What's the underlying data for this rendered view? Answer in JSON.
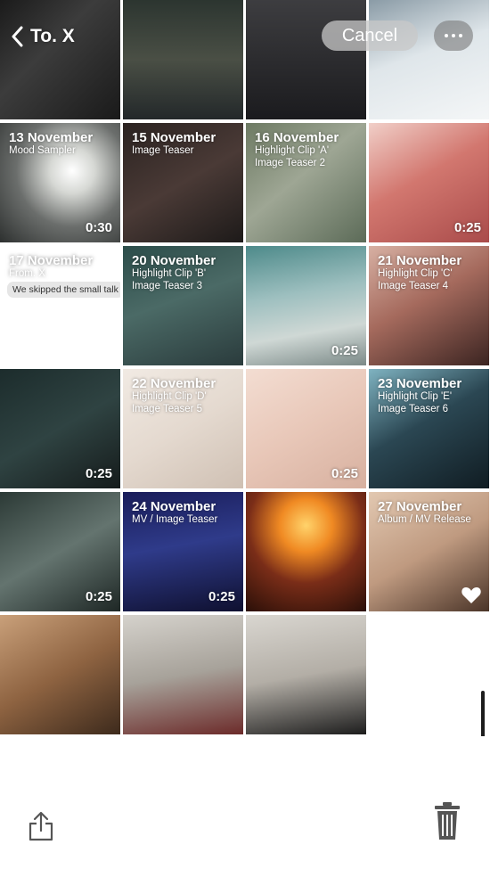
{
  "nav": {
    "back_label": "To. X",
    "cancel_label": "Cancel"
  },
  "grid": {
    "items": [
      {
        "date": "",
        "line1": "",
        "line2": "",
        "duration": ""
      },
      {
        "date": "",
        "line1": "",
        "line2": "",
        "duration": ""
      },
      {
        "date": "",
        "line1": "",
        "line2": "",
        "duration": ""
      },
      {
        "date": "",
        "line1": "",
        "line2": "",
        "duration": ""
      },
      {
        "date": "13 November",
        "line1": "Mood Sampler",
        "line2": "",
        "duration": "0:30"
      },
      {
        "date": "15 November",
        "line1": "Image Teaser",
        "line2": "",
        "duration": ""
      },
      {
        "date": "16 November",
        "line1": "Highlight Clip 'A'",
        "line2": "Image Teaser 2",
        "duration": ""
      },
      {
        "date": "",
        "line1": "",
        "line2": "",
        "duration": "0:25"
      },
      {
        "date": "17 November",
        "line1": "From. X",
        "line2": "",
        "bubble": "We skipped the small talk",
        "duration": ""
      },
      {
        "date": "20 November",
        "line1": "Highlight Clip 'B'",
        "line2": "Image Teaser 3",
        "duration": ""
      },
      {
        "date": "",
        "line1": "",
        "line2": "",
        "duration": "0:25"
      },
      {
        "date": "21 November",
        "line1": "Highlight Clip 'C'",
        "line2": "Image Teaser 4",
        "duration": ""
      },
      {
        "date": "",
        "line1": "",
        "line2": "",
        "duration": "0:25"
      },
      {
        "date": "22 November",
        "line1": "Highlight Clip 'D'",
        "line2": "Image Teaser 5",
        "duration": ""
      },
      {
        "date": "",
        "line1": "",
        "line2": "",
        "duration": "0:25"
      },
      {
        "date": "23 November",
        "line1": "Highlight Clip 'E'",
        "line2": "Image Teaser 6",
        "duration": ""
      },
      {
        "date": "",
        "line1": "",
        "line2": "",
        "duration": "0:25"
      },
      {
        "date": "24 November",
        "line1": "MV / Image Teaser",
        "line2": "",
        "duration": "0:25"
      },
      {
        "date": "",
        "line1": "",
        "line2": "",
        "duration": ""
      },
      {
        "date": "27 November",
        "line1": "Album / MV Release",
        "line2": "",
        "duration": "",
        "favorite": true
      },
      {
        "date": "",
        "line1": "",
        "line2": "",
        "duration": ""
      },
      {
        "date": "",
        "line1": "",
        "line2": "",
        "duration": ""
      },
      {
        "date": "",
        "line1": "",
        "line2": "",
        "duration": ""
      }
    ]
  },
  "toolbar": {
    "share_icon": "share-icon",
    "trash_icon": "trash-icon"
  },
  "colors": {
    "text_on_photo": "#ffffff",
    "cancel_pill": "#c8c8c8",
    "more_pill": "#787878",
    "bubble": "#e6e6e6"
  }
}
